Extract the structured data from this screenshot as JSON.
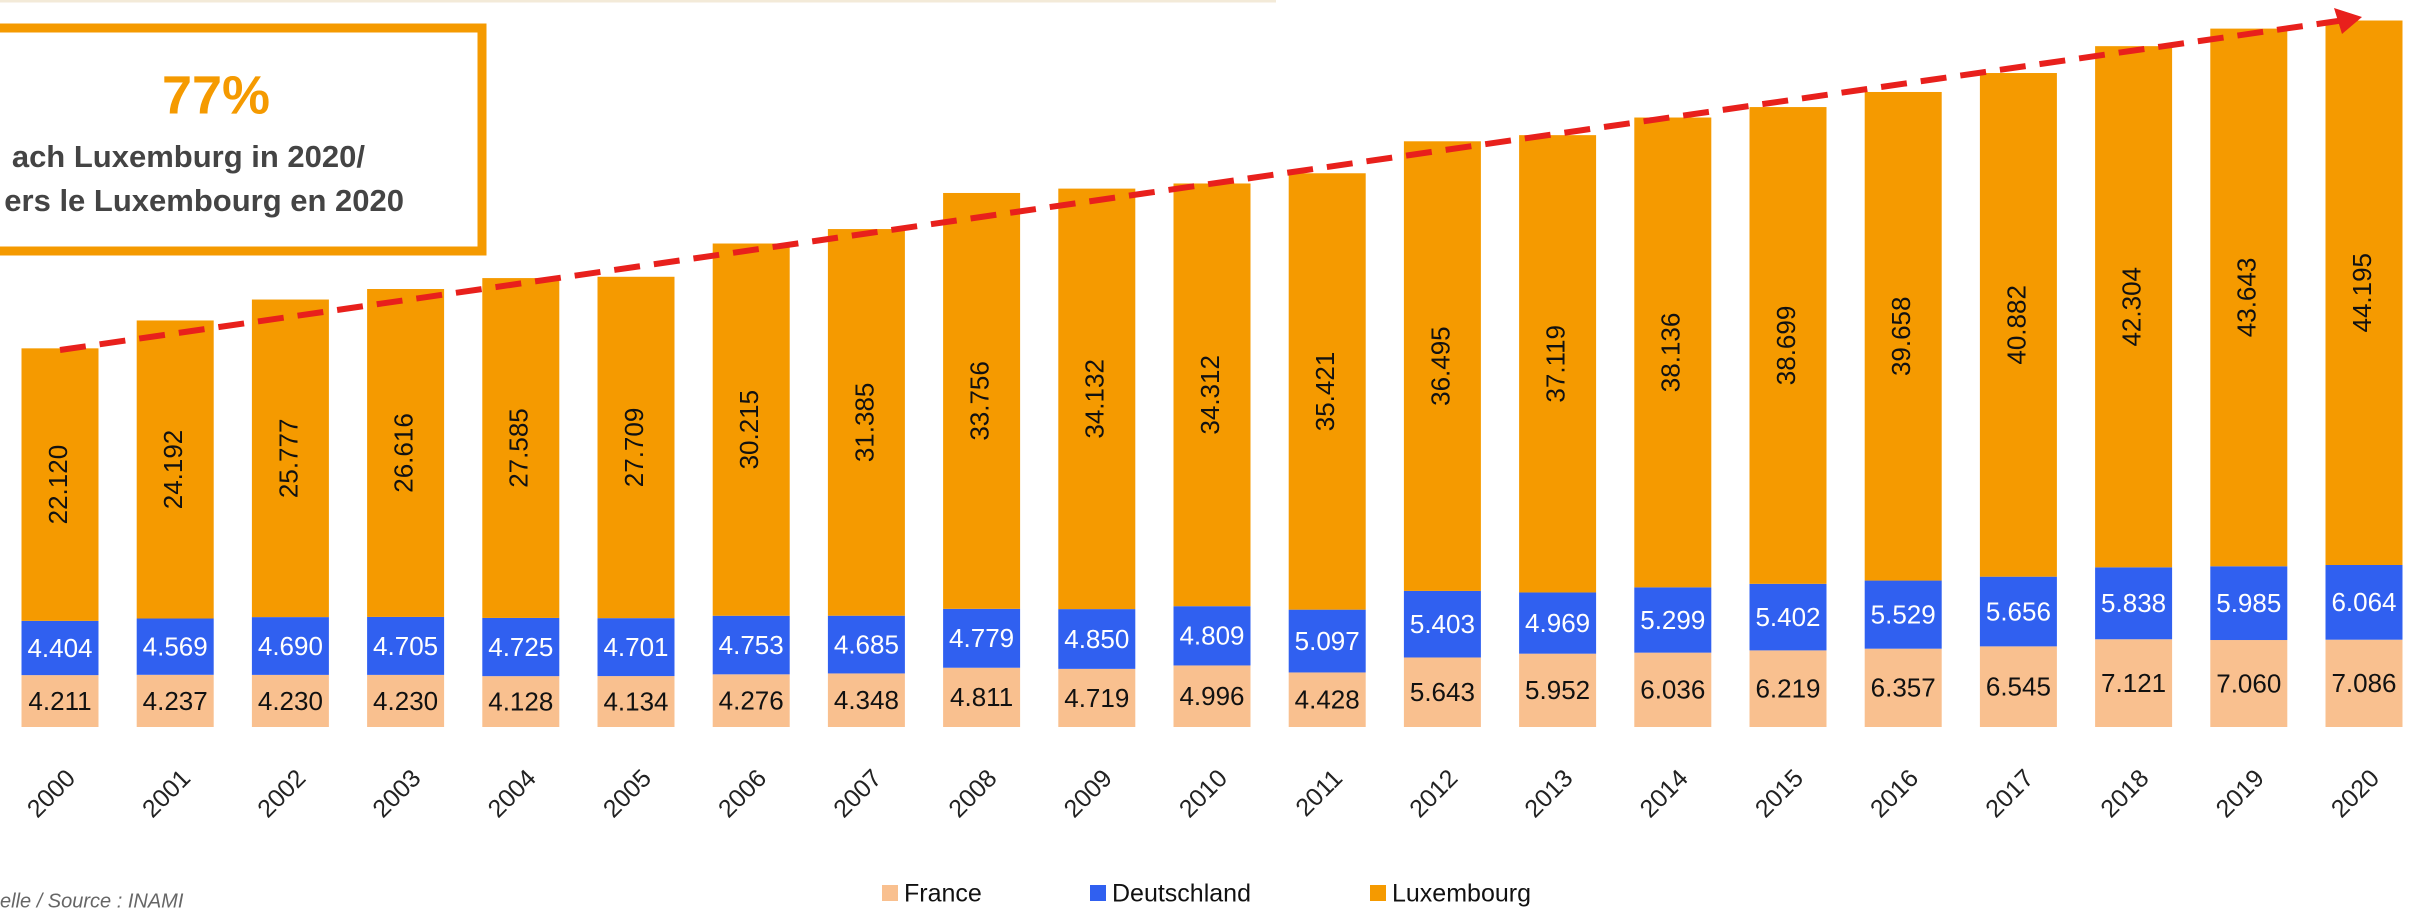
{
  "chart_data": {
    "type": "stacked_bar",
    "annotations": [
      "77%",
      "ach Luxemburg in 2020/",
      "ers le Luxembourg en 2020"
    ],
    "source": "elle / Source : INAMI",
    "legend": "bottom",
    "categories": [
      "2000",
      "2001",
      "2002",
      "2003",
      "2004",
      "2005",
      "2006",
      "2007",
      "2008",
      "2009",
      "2010",
      "2011",
      "2012",
      "2013",
      "2014",
      "2015",
      "2016",
      "2017",
      "2018",
      "2019",
      "2020"
    ],
    "series": [
      {
        "name": "France",
        "color": "#f9c08f",
        "values": [
          4211,
          4237,
          4230,
          4230,
          4128,
          4134,
          4276,
          4348,
          4811,
          4719,
          4996,
          4428,
          5643,
          5952,
          6036,
          6219,
          6357,
          6545,
          7121,
          7060,
          7086
        ],
        "value_labels": [
          "4.211",
          "4.237",
          "4.230",
          "4.230",
          "4.128",
          "4.134",
          "4.276",
          "4.348",
          "4.811",
          "4.719",
          "4.996",
          "4.428",
          "5.643",
          "5.952",
          "6.036",
          "6.219",
          "6.357",
          "6.545",
          "7.121",
          "7.060",
          "7.086"
        ]
      },
      {
        "name": "Deutschland",
        "color": "#3060f0",
        "values": [
          4404,
          4569,
          4690,
          4705,
          4725,
          4701,
          4753,
          4685,
          4779,
          4850,
          4809,
          5097,
          5403,
          4969,
          5299,
          5402,
          5529,
          5656,
          5838,
          5985,
          6064
        ],
        "value_labels": [
          "4.404",
          "4.569",
          "4.690",
          "4.705",
          "4.725",
          "4.701",
          "4.753",
          "4.685",
          "4.779",
          "4.850",
          "4.809",
          "5.097",
          "5.403",
          "4.969",
          "5.299",
          "5.402",
          "5.529",
          "5.656",
          "5.838",
          "5.985",
          "6.064"
        ]
      },
      {
        "name": "Luxembourg",
        "color": "#f59a00",
        "values": [
          22120,
          24192,
          25777,
          26616,
          27585,
          27709,
          30215,
          31385,
          33756,
          34132,
          34312,
          35421,
          36495,
          37119,
          38136,
          38699,
          39658,
          40882,
          42304,
          43643,
          44195
        ],
        "value_labels": [
          "22.120",
          "24.192",
          "25.777",
          "26.616",
          "27.585",
          "27.709",
          "30.215",
          "31.385",
          "33.756",
          "34.132",
          "34.312",
          "35.421",
          "36.495",
          "37.119",
          "38.136",
          "38.699",
          "39.658",
          "40.882",
          "42.304",
          "43.643",
          "44.195"
        ]
      }
    ]
  }
}
